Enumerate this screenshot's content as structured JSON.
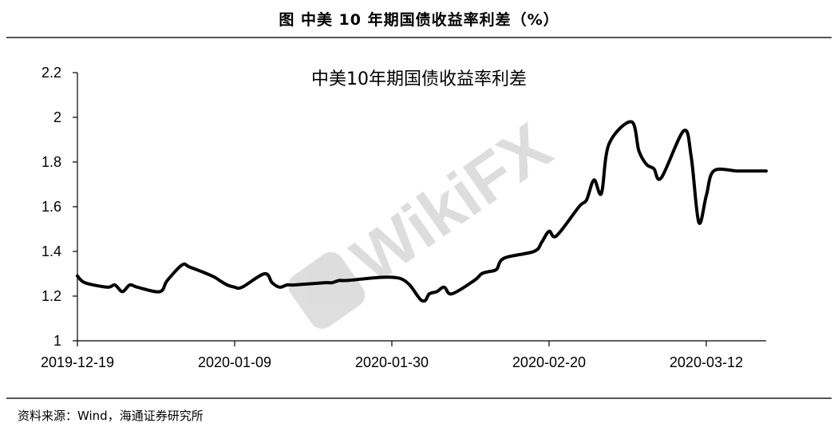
{
  "figure_title": "图 中美 10 年期国债收益率利差（%）",
  "source": "资料来源：Wind，海通证券研究所",
  "watermark": "WikiFX",
  "chart_data": {
    "type": "line",
    "title": "中美10年期国债收益率利差",
    "xlabel": "",
    "ylabel": "",
    "ylim": [
      1,
      2.2
    ],
    "yticks": [
      1,
      1.2,
      1.4,
      1.6,
      1.8,
      2,
      2.2
    ],
    "xticks": [
      "2019-12-19",
      "2020-01-09",
      "2020-01-30",
      "2020-02-20",
      "2020-03-12"
    ],
    "xlim": [
      "2019-12-19",
      "2020-03-20"
    ],
    "grid": false,
    "line_color": "#000000",
    "series": [
      {
        "x": [
          "2019-12-19",
          "2019-12-20",
          "2019-12-23",
          "2019-12-24",
          "2019-12-25",
          "2019-12-26",
          "2019-12-27",
          "2019-12-30",
          "2019-12-31",
          "2020-01-02",
          "2020-01-03",
          "2020-01-06",
          "2020-01-07",
          "2020-01-08",
          "2020-01-09",
          "2020-01-10",
          "2020-01-13",
          "2020-01-14",
          "2020-01-15",
          "2020-01-16",
          "2020-01-17",
          "2020-01-21",
          "2020-01-22",
          "2020-01-23",
          "2020-01-24",
          "2020-01-31",
          "2020-02-03",
          "2020-02-04",
          "2020-02-05",
          "2020-02-06",
          "2020-02-07",
          "2020-02-10",
          "2020-02-11",
          "2020-02-12",
          "2020-02-13",
          "2020-02-14",
          "2020-02-18",
          "2020-02-19",
          "2020-02-20",
          "2020-02-21",
          "2020-02-24",
          "2020-02-25",
          "2020-02-26",
          "2020-02-27",
          "2020-02-28",
          "2020-03-02",
          "2020-03-03",
          "2020-03-04",
          "2020-03-05",
          "2020-03-06",
          "2020-03-09",
          "2020-03-10",
          "2020-03-11",
          "2020-03-12",
          "2020-03-13",
          "2020-03-16",
          "2020-03-17",
          "2020-03-18",
          "2020-03-19",
          "2020-03-20"
        ],
        "values": [
          1.29,
          1.26,
          1.24,
          1.25,
          1.22,
          1.25,
          1.24,
          1.22,
          1.27,
          1.34,
          1.33,
          1.29,
          1.27,
          1.25,
          1.24,
          1.24,
          1.3,
          1.26,
          1.24,
          1.25,
          1.25,
          1.26,
          1.26,
          1.27,
          1.27,
          1.28,
          1.18,
          1.21,
          1.22,
          1.24,
          1.21,
          1.27,
          1.3,
          1.31,
          1.32,
          1.37,
          1.4,
          1.44,
          1.49,
          1.47,
          1.6,
          1.63,
          1.72,
          1.66,
          1.88,
          1.98,
          1.85,
          1.79,
          1.77,
          1.73,
          1.94,
          1.82,
          1.53,
          1.65,
          1.76,
          1.76,
          1.76,
          1.76,
          1.76,
          1.76
        ]
      }
    ]
  }
}
